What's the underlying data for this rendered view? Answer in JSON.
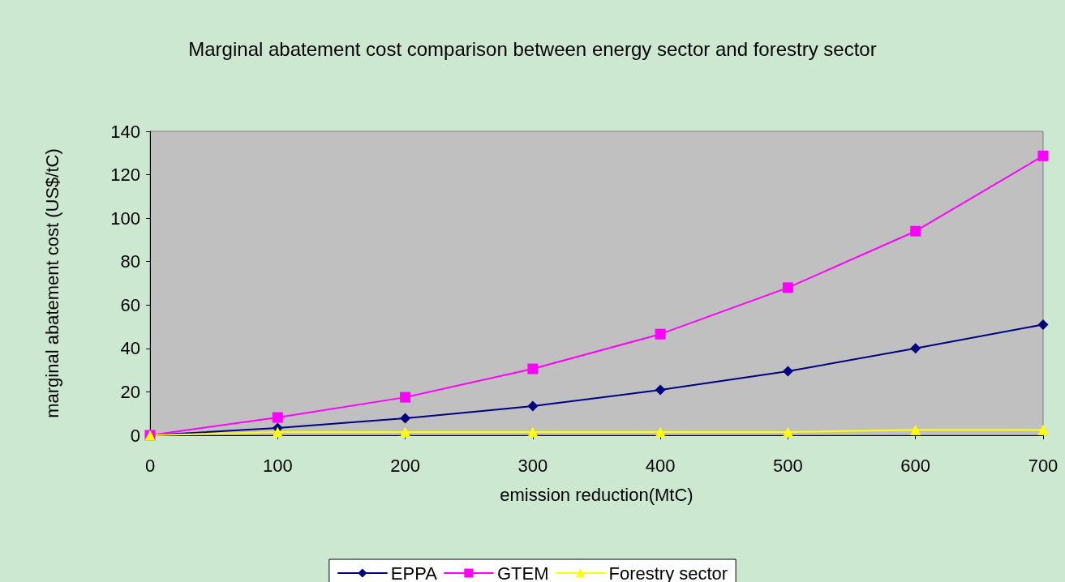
{
  "chart_data": {
    "type": "line",
    "title": "Marginal abatement cost comparison between energy sector and forestry sector",
    "xlabel": "emission reduction(MtC)",
    "ylabel": "marginal abatement cost (US$/tC)",
    "x": [
      0,
      100,
      200,
      300,
      400,
      500,
      600,
      700
    ],
    "series": [
      {
        "name": "EPPA",
        "color": "#000080",
        "marker": "diamond",
        "values": [
          0,
          3.4,
          7.8,
          13.4,
          20.9,
          29.5,
          40,
          51
        ]
      },
      {
        "name": "GTEM",
        "color": "#ff00ff",
        "marker": "square",
        "values": [
          0,
          8.2,
          17.5,
          30.6,
          46.6,
          68,
          94,
          128.7
        ]
      },
      {
        "name": "Forestry sector",
        "color": "#ffff00",
        "marker": "triangle",
        "values": [
          0,
          1.5,
          1.5,
          1.5,
          1.5,
          1.5,
          2.5,
          2.5
        ]
      }
    ],
    "xlim": [
      0,
      700
    ],
    "xticks": [
      0,
      100,
      200,
      300,
      400,
      500,
      600,
      700
    ],
    "ylim": [
      0,
      140
    ],
    "yticks": [
      0,
      20,
      40,
      60,
      80,
      100,
      120,
      140
    ],
    "grid": false,
    "legend": "bottom",
    "line_style": "solid"
  }
}
